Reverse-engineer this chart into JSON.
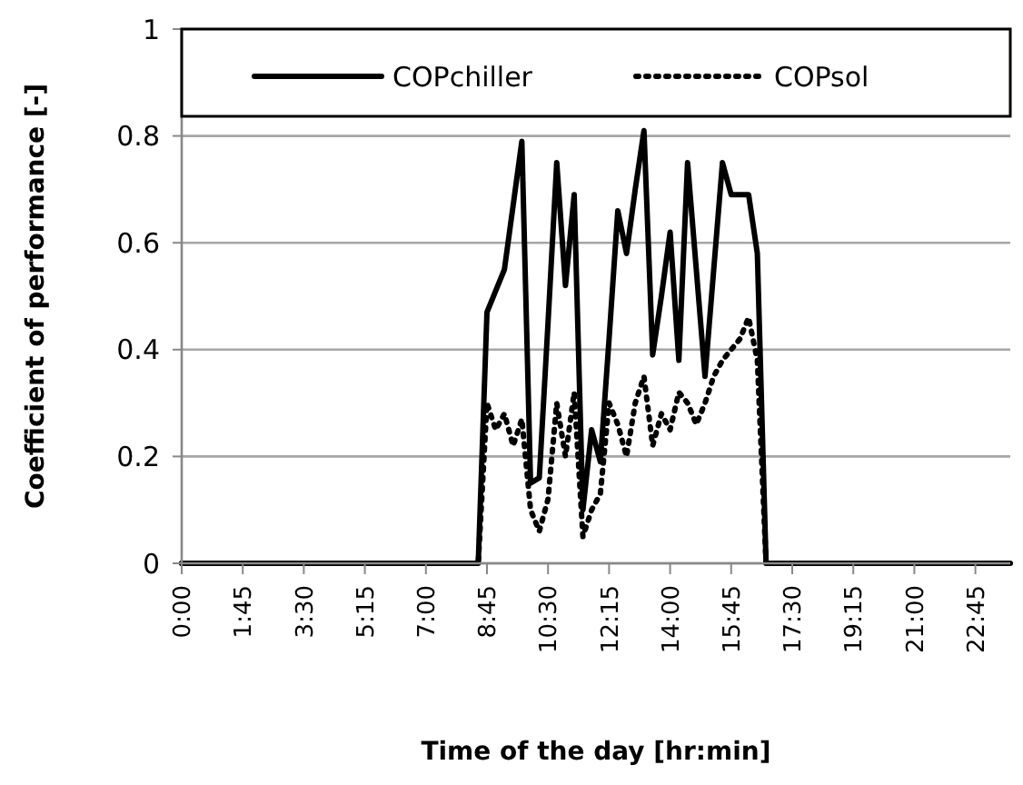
{
  "chart_data": {
    "type": "line",
    "xlabel": "Time of the day [hr:min]",
    "ylabel": "Coefficient of performance [-]",
    "xlim": [
      0,
      23.75
    ],
    "ylim": [
      0,
      1
    ],
    "xticks": [
      {
        "value": 0,
        "label": "0:00"
      },
      {
        "value": 1.75,
        "label": "1:45"
      },
      {
        "value": 3.5,
        "label": "3:30"
      },
      {
        "value": 5.25,
        "label": "5:15"
      },
      {
        "value": 7,
        "label": "7:00"
      },
      {
        "value": 8.75,
        "label": "8:45"
      },
      {
        "value": 10.5,
        "label": "10:30"
      },
      {
        "value": 12.25,
        "label": "12:15"
      },
      {
        "value": 14,
        "label": "14:00"
      },
      {
        "value": 15.75,
        "label": "15:45"
      },
      {
        "value": 17.5,
        "label": "17:30"
      },
      {
        "value": 19.25,
        "label": "19:15"
      },
      {
        "value": 21,
        "label": "21:00"
      },
      {
        "value": 22.75,
        "label": "22:45"
      }
    ],
    "yticks": [
      0,
      0.2,
      0.4,
      0.6,
      0.8,
      1
    ],
    "grid": "y",
    "legend": "top",
    "x": [
      0,
      8.5,
      8.75,
      9,
      9.25,
      9.5,
      9.75,
      10,
      10.25,
      10.5,
      10.75,
      11,
      11.25,
      11.5,
      11.75,
      12,
      12.25,
      12.5,
      12.75,
      13,
      13.25,
      13.5,
      13.75,
      14,
      14.25,
      14.5,
      14.75,
      15,
      15.25,
      15.5,
      15.75,
      16,
      16.25,
      16.5,
      16.75,
      23.75
    ],
    "series": [
      {
        "name": "COPchiller",
        "color": "#000000",
        "line_style": "solid",
        "values": [
          0,
          0,
          0.47,
          0.51,
          0.55,
          0.67,
          0.79,
          0.15,
          0.16,
          0.45,
          0.75,
          0.52,
          0.69,
          0.1,
          0.25,
          0.19,
          0.42,
          0.66,
          0.58,
          0.7,
          0.81,
          0.39,
          0.5,
          0.62,
          0.38,
          0.75,
          0.55,
          0.35,
          0.55,
          0.75,
          0.69,
          0.69,
          0.69,
          0.58,
          0,
          0
        ]
      },
      {
        "name": "COPsol",
        "color": "#000000",
        "line_style": "dotted",
        "values": [
          0,
          0,
          0.3,
          0.25,
          0.28,
          0.22,
          0.27,
          0.1,
          0.06,
          0.12,
          0.3,
          0.2,
          0.32,
          0.05,
          0.1,
          0.13,
          0.3,
          0.26,
          0.2,
          0.3,
          0.35,
          0.22,
          0.28,
          0.25,
          0.32,
          0.3,
          0.26,
          0.3,
          0.35,
          0.38,
          0.4,
          0.42,
          0.46,
          0.38,
          0,
          0
        ]
      }
    ]
  }
}
